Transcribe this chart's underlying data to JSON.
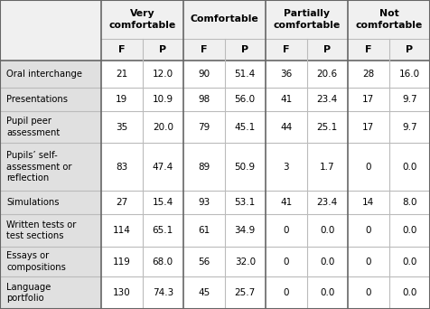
{
  "col_groups": [
    "Very\ncomfortable",
    "Comfortable",
    "Partially\ncomfortable",
    "Not\ncomfortable"
  ],
  "sub_headers": [
    "F",
    "P",
    "F",
    "P",
    "F",
    "P",
    "F",
    "P"
  ],
  "row_labels": [
    "Oral interchange",
    "Presentations",
    "Pupil peer\nassessment",
    "Pupils’ self-\nassessment or\nreflection",
    "Simulations",
    "Written tests or\ntest sections",
    "Essays or\ncompositions",
    "Language\nportfolio"
  ],
  "data": [
    [
      "21",
      "12.0",
      "90",
      "51.4",
      "36",
      "20.6",
      "28",
      "16.0"
    ],
    [
      "19",
      "10.9",
      "98",
      "56.0",
      "41",
      "23.4",
      "17",
      "9.7"
    ],
    [
      "35",
      "20.0",
      "79",
      "45.1",
      "44",
      "25.1",
      "17",
      "9.7"
    ],
    [
      "83",
      "47.4",
      "89",
      "50.9",
      "3",
      "1.7",
      "0",
      "0.0"
    ],
    [
      "27",
      "15.4",
      "93",
      "53.1",
      "41",
      "23.4",
      "14",
      "8.0"
    ],
    [
      "114",
      "65.1",
      "61",
      "34.9",
      "0",
      "0.0",
      "0",
      "0.0"
    ],
    [
      "119",
      "68.0",
      "56",
      "32.0",
      "0",
      "0.0",
      "0",
      "0.0"
    ],
    [
      "130",
      "74.3",
      "45",
      "25.7",
      "0",
      "0.0",
      "0",
      "0.0"
    ]
  ],
  "bg_header_left": "#e0e0e0",
  "bg_header_top": "#f0f0f0",
  "bg_white": "#ffffff",
  "border_light": "#bbbbbb",
  "border_dark": "#666666",
  "text_color": "#000000",
  "figw": 4.76,
  "figh": 3.42,
  "dpi": 100
}
